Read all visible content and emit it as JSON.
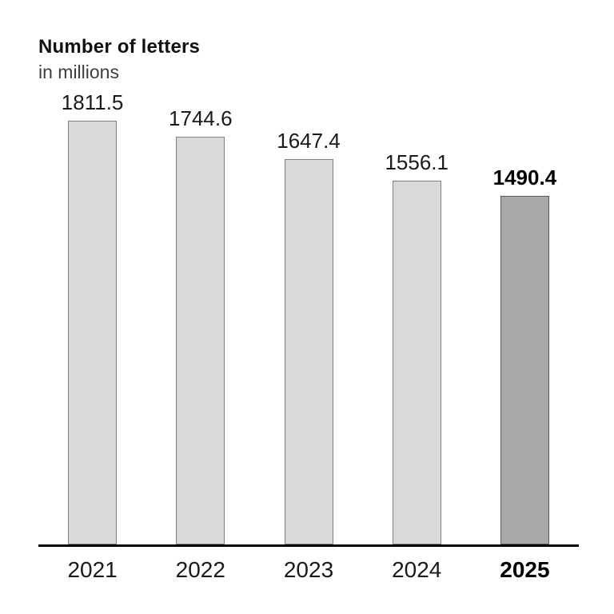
{
  "chart_data": {
    "type": "bar",
    "title": "Number of letters",
    "subtitle": "in millions",
    "categories": [
      "2021",
      "2022",
      "2023",
      "2024",
      "2025"
    ],
    "values": [
      1811.5,
      1744.6,
      1647.4,
      1556.1,
      1490.4
    ],
    "value_labels": [
      "1811.5",
      "1744.6",
      "1647.4",
      "1556.1",
      "1490.4"
    ],
    "highlighted_category": "2025",
    "xlabel": "",
    "ylabel": "Number of letters in millions",
    "ylim": [
      0,
      1860
    ],
    "grid": false,
    "legend": false,
    "colors": {
      "bar_fill": "#d9d9d9",
      "bar_border": "#808080",
      "highlight_fill": "#a8a8a8",
      "highlight_border": "#595959",
      "axis": "#000000",
      "text": "#1a1a1a"
    }
  }
}
